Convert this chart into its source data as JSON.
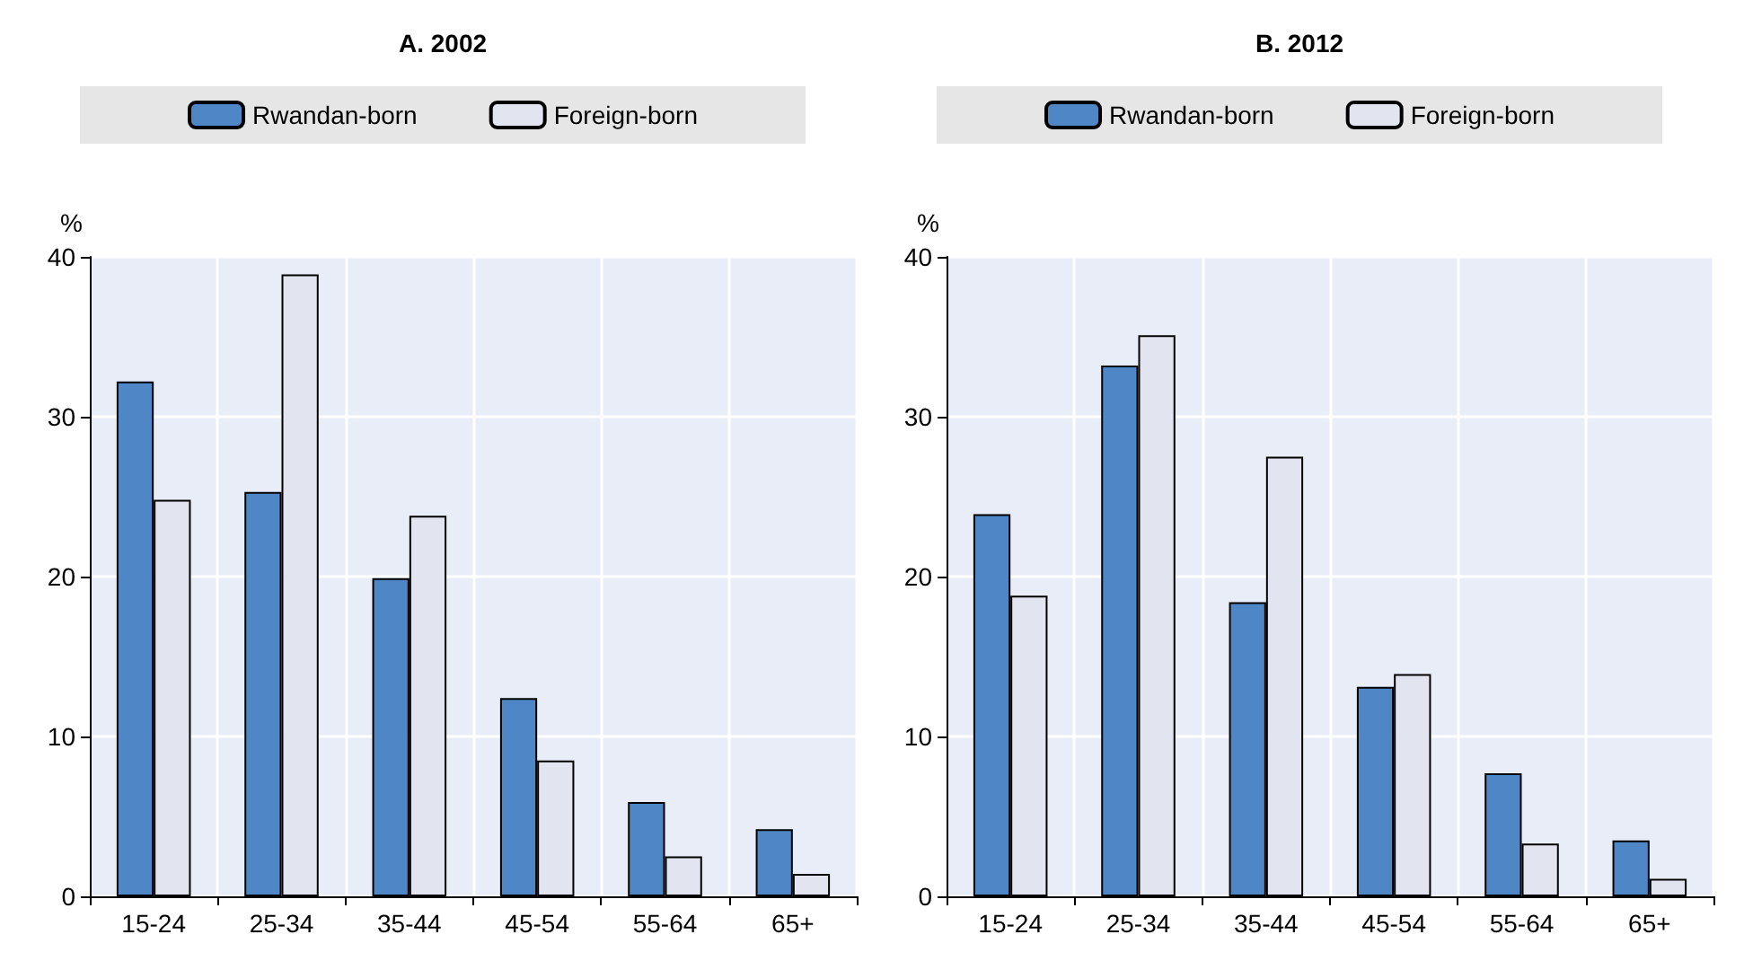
{
  "chart_data": [
    {
      "type": "bar",
      "title": "A. 2002",
      "ylabel": "%",
      "categories": [
        "15-24",
        "25-34",
        "35-44",
        "45-54",
        "55-64",
        "65+"
      ],
      "series": [
        {
          "name": "Rwandan-born",
          "color": "#4e86c6",
          "values": [
            32.2,
            25.3,
            19.9,
            12.4,
            5.9,
            4.2
          ]
        },
        {
          "name": "Foreign-born",
          "color": "#e2e5f0",
          "values": [
            24.8,
            38.9,
            23.8,
            8.5,
            2.5,
            1.4
          ]
        }
      ],
      "ylim": [
        0,
        40
      ],
      "yticks": [
        0,
        10,
        20,
        30,
        40
      ],
      "grid": true,
      "legend": "top"
    },
    {
      "type": "bar",
      "title": "B. 2012",
      "ylabel": "%",
      "categories": [
        "15-24",
        "25-34",
        "35-44",
        "45-54",
        "55-64",
        "65+"
      ],
      "series": [
        {
          "name": "Rwandan-born",
          "color": "#4e86c6",
          "values": [
            23.9,
            33.2,
            18.4,
            13.1,
            7.7,
            3.5
          ]
        },
        {
          "name": "Foreign-born",
          "color": "#e2e5f0",
          "values": [
            18.8,
            35.1,
            27.5,
            13.9,
            3.3,
            1.1
          ]
        }
      ],
      "ylim": [
        0,
        40
      ],
      "yticks": [
        0,
        10,
        20,
        30,
        40
      ],
      "grid": true,
      "legend": "top"
    }
  ]
}
